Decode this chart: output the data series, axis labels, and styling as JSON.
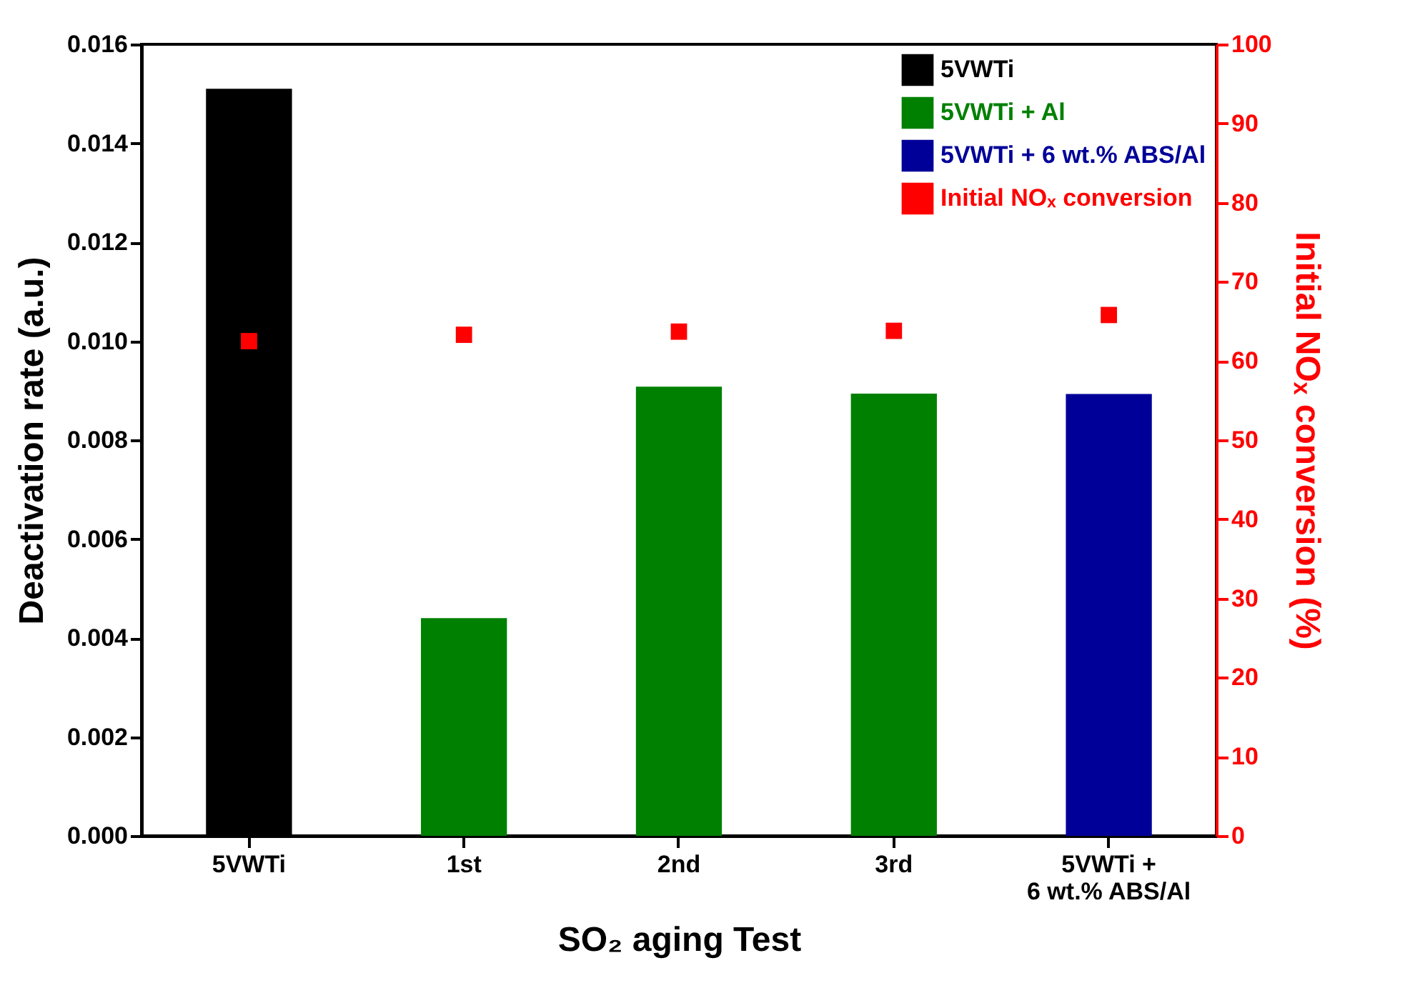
{
  "chart_data": {
    "type": "bar",
    "categories": [
      "5VWTi",
      "1st",
      "2nd",
      "3rd",
      "5VWTi +\n6 wt.% ABS/Al"
    ],
    "xlabel": "SO₂ aging Test",
    "ylabel": "Deactivation rate (a.u.)",
    "y2label": "Initial NOₓ conversion (%)",
    "ylim": [
      0,
      0.016
    ],
    "yticks": [
      {
        "value": 0,
        "label": "0.000"
      },
      {
        "value": 0.002,
        "label": "0.002"
      },
      {
        "value": 0.004,
        "label": "0.004"
      },
      {
        "value": 0.006,
        "label": "0.006"
      },
      {
        "value": 0.008,
        "label": "0.008"
      },
      {
        "value": 0.01,
        "label": "0.010"
      },
      {
        "value": 0.012,
        "label": "0.012"
      },
      {
        "value": 0.014,
        "label": "0.014"
      },
      {
        "value": 0.016,
        "label": "0.016"
      }
    ],
    "y2lim": [
      0,
      100
    ],
    "y2ticks": [
      0,
      10,
      20,
      30,
      40,
      50,
      60,
      70,
      80,
      90,
      100
    ],
    "legend": "top right",
    "marker": "square",
    "series": [
      {
        "name": "5VWTi",
        "color": "#000000",
        "values": [
          0.0151,
          null,
          null,
          null,
          null
        ]
      },
      {
        "name": "5VWTi + Al",
        "color": "#008000",
        "values": [
          null,
          0.0044,
          0.00908,
          0.00894,
          null
        ]
      },
      {
        "name": "5VWTi + 6 wt.% ABS/Al",
        "color": "#000099",
        "values": [
          null,
          null,
          null,
          null,
          0.00893
        ]
      },
      {
        "name": "Initial NOₓ conversion",
        "type": "scatter",
        "axis": "y2",
        "color": "#ff0000",
        "values": [
          62.5,
          63.3,
          63.7,
          63.8,
          65.8
        ]
      }
    ]
  }
}
